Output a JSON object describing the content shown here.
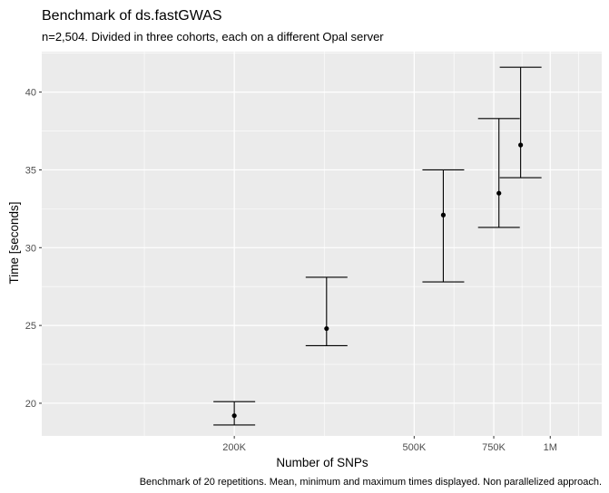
{
  "chart_data": {
    "type": "scatter",
    "title": "Benchmark of ds.fastGWAS",
    "subtitle": "n=2,504. Divided in three cohorts, each on a different Opal server",
    "caption": "Benchmark of 20 repetitions. Mean, minimum and maximum times displayed. Non parallelized approach.",
    "xlabel": "Number of SNPs",
    "ylabel": "Time [seconds]",
    "x_scale": "log10",
    "xlim": [
      75000,
      1300000
    ],
    "ylim": [
      17.9,
      42.6
    ],
    "x_ticks": [
      {
        "value": 200000,
        "label": "200K"
      },
      {
        "value": 500000,
        "label": "500K"
      },
      {
        "value": 750000,
        "label": "750K"
      },
      {
        "value": 1000000,
        "label": "1M"
      }
    ],
    "y_ticks": [
      {
        "value": 20,
        "label": "20"
      },
      {
        "value": 25,
        "label": "25"
      },
      {
        "value": 30,
        "label": "30"
      },
      {
        "value": 35,
        "label": "35"
      },
      {
        "value": 40,
        "label": "40"
      }
    ],
    "grid": true,
    "legend": "none",
    "series": [
      {
        "points": [
          {
            "x": 200000,
            "mean": 19.2,
            "min": 18.6,
            "max": 20.1
          },
          {
            "x": 320000,
            "mean": 24.8,
            "min": 23.7,
            "max": 28.1
          },
          {
            "x": 580000,
            "mean": 32.1,
            "min": 27.8,
            "max": 35.0
          },
          {
            "x": 770000,
            "mean": 33.5,
            "min": 31.3,
            "max": 38.3
          },
          {
            "x": 860000,
            "mean": 36.6,
            "min": 34.5,
            "max": 41.6
          }
        ]
      }
    ],
    "colors": {
      "panel": "#ebebeb",
      "grid": "#ffffff",
      "marks": "#000000"
    }
  }
}
